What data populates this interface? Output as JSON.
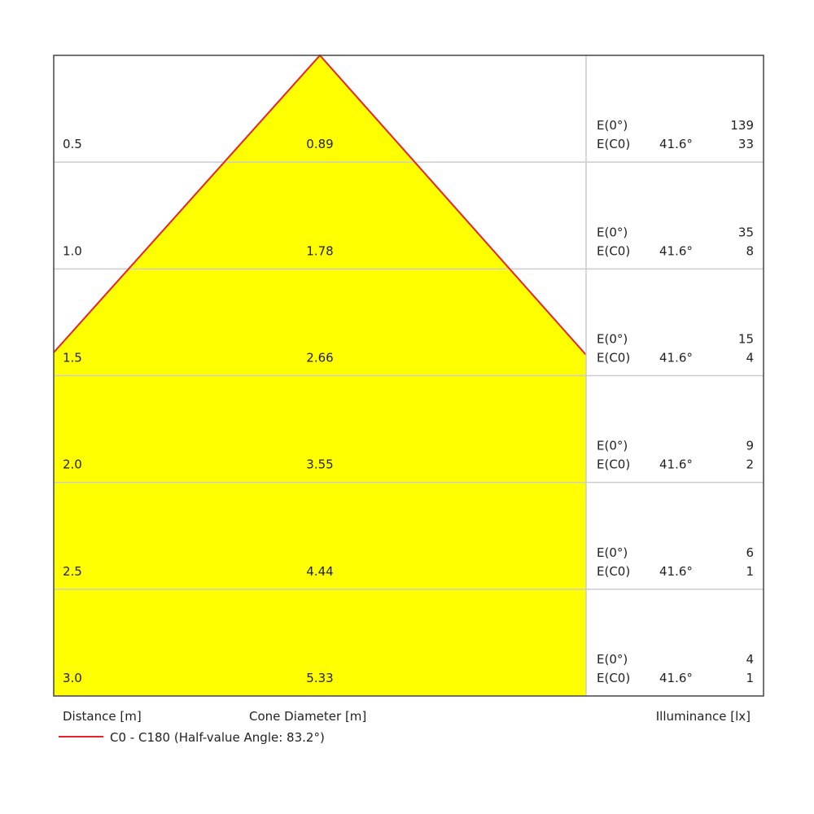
{
  "rows": [
    {
      "distance": "0.5",
      "diameter": "0.89",
      "e0_label": "E(0°)",
      "e0": "139",
      "ec0_label": "E(C0)",
      "angle": "41.6°",
      "ec0": "33"
    },
    {
      "distance": "1.0",
      "diameter": "1.78",
      "e0_label": "E(0°)",
      "e0": "35",
      "ec0_label": "E(C0)",
      "angle": "41.6°",
      "ec0": "8"
    },
    {
      "distance": "1.5",
      "diameter": "2.66",
      "e0_label": "E(0°)",
      "e0": "15",
      "ec0_label": "E(C0)",
      "angle": "41.6°",
      "ec0": "4"
    },
    {
      "distance": "2.0",
      "diameter": "3.55",
      "e0_label": "E(0°)",
      "e0": "9",
      "ec0_label": "E(C0)",
      "angle": "41.6°",
      "ec0": "2"
    },
    {
      "distance": "2.5",
      "diameter": "4.44",
      "e0_label": "E(0°)",
      "e0": "6",
      "ec0_label": "E(C0)",
      "angle": "41.6°",
      "ec0": "1"
    },
    {
      "distance": "3.0",
      "diameter": "5.33",
      "e0_label": "E(0°)",
      "e0": "4",
      "ec0_label": "E(C0)",
      "angle": "41.6°",
      "ec0": "1"
    }
  ],
  "footer": {
    "distance": "Distance [m]",
    "diameter": "Cone Diameter [m]",
    "illuminance": "Illuminance [lx]"
  },
  "legend": {
    "label": "C0 - C180 (Half-value Angle: 83.2°)"
  }
}
